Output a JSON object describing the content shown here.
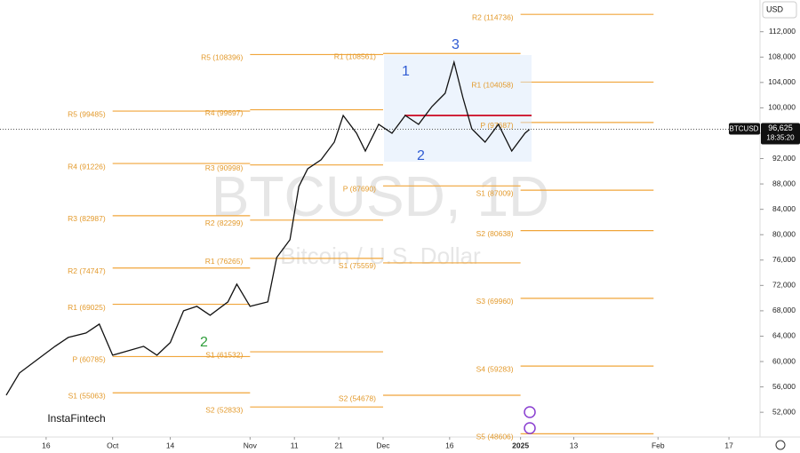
{
  "chart_data": {
    "type": "line",
    "watermark": "BTCUSD, 1D",
    "subtitle": "Bitcoin / U.S. Dollar",
    "brand": "InstaFintech",
    "currency": "USD",
    "symbol": "BTCUSD",
    "last_price": {
      "value": 96625,
      "label": "96,625"
    },
    "countdown": "18:35:20",
    "color": "#111111",
    "level_color": "#f0a53a",
    "xlim": [
      -10.4,
      161
    ],
    "ylim": [
      48100,
      117000
    ],
    "xticks": [
      {
        "value": 0,
        "label": "16"
      },
      {
        "value": 15,
        "label": "Oct"
      },
      {
        "value": 28,
        "label": "14"
      },
      {
        "value": 46,
        "label": "Nov"
      },
      {
        "value": 56,
        "label": "11"
      },
      {
        "value": 66,
        "label": "21"
      },
      {
        "value": 76,
        "label": "Dec"
      },
      {
        "value": 91,
        "label": "16"
      },
      {
        "value": 107,
        "label": "2025"
      },
      {
        "value": 119,
        "label": "13"
      },
      {
        "value": 138,
        "label": "Feb"
      },
      {
        "value": 154,
        "label": "17"
      }
    ],
    "yticks": [
      {
        "value": 52000,
        "label": "52,000"
      },
      {
        "value": 56000,
        "label": "56,000"
      },
      {
        "value": 60000,
        "label": "60,000"
      },
      {
        "value": 64000,
        "label": "64,000"
      },
      {
        "value": 68000,
        "label": "68,000"
      },
      {
        "value": 72000,
        "label": "72,000"
      },
      {
        "value": 76000,
        "label": "76,000"
      },
      {
        "value": 80000,
        "label": "80,000"
      },
      {
        "value": 84000,
        "label": "84,000"
      },
      {
        "value": 88000,
        "label": "88,000"
      },
      {
        "value": 92000,
        "label": "92,000"
      },
      {
        "value": 96000,
        "label": "96,000"
      },
      {
        "value": 100000,
        "label": "100,000"
      },
      {
        "value": 104000,
        "label": "104,000"
      },
      {
        "value": 108000,
        "label": "108,000"
      },
      {
        "value": 112000,
        "label": "112,000"
      }
    ],
    "x": [
      -9,
      -6,
      -2,
      2,
      5,
      9,
      12,
      15,
      18,
      22,
      25,
      28,
      31,
      34,
      37,
      41,
      43,
      46,
      50,
      52,
      55,
      57,
      59,
      62,
      65,
      67,
      70,
      72,
      75,
      78,
      81,
      84,
      87,
      90,
      92,
      94,
      96,
      99,
      102,
      105,
      108,
      109
    ],
    "values": [
      54700,
      58200,
      60300,
      62400,
      63800,
      64500,
      65900,
      61000,
      61600,
      62400,
      61000,
      63000,
      68000,
      68700,
      67300,
      69400,
      72200,
      68700,
      69400,
      76400,
      79200,
      87600,
      90400,
      91800,
      94600,
      98800,
      96000,
      93200,
      97400,
      96000,
      98800,
      97400,
      100200,
      102300,
      107200,
      101600,
      96700,
      94600,
      97400,
      93200,
      96000,
      96600
    ],
    "levels": [
      {
        "label": "R5 (99485)",
        "value": 99485,
        "from": 15,
        "to": 46
      },
      {
        "label": "R4 (91226)",
        "value": 91226,
        "from": 15,
        "to": 46
      },
      {
        "label": "R3 (82987)",
        "value": 82987,
        "from": 15,
        "to": 46
      },
      {
        "label": "R2 (74747)",
        "value": 74747,
        "from": 15,
        "to": 46
      },
      {
        "label": "R1 (69025)",
        "value": 69025,
        "from": 15,
        "to": 46
      },
      {
        "label": "P (60785)",
        "value": 60785,
        "from": 15,
        "to": 46
      },
      {
        "label": "S1 (55063)",
        "value": 55063,
        "from": 15,
        "to": 46
      },
      {
        "label": "R5 (108396)",
        "value": 108396,
        "from": 46,
        "to": 76
      },
      {
        "label": "R4 (99697)",
        "value": 99697,
        "from": 46,
        "to": 76
      },
      {
        "label": "R3 (90998)",
        "value": 90998,
        "from": 46,
        "to": 76
      },
      {
        "label": "R2 (82299)",
        "value": 82299,
        "from": 46,
        "to": 76
      },
      {
        "label": "R1 (76265)",
        "value": 76265,
        "from": 46,
        "to": 76
      },
      {
        "label": "S1 (61532)",
        "value": 61532,
        "from": 46,
        "to": 76
      },
      {
        "label": "S2 (52833)",
        "value": 52833,
        "from": 46,
        "to": 76
      },
      {
        "label": "R1 (108561)",
        "value": 108561,
        "from": 76,
        "to": 107
      },
      {
        "label": "P (87690)",
        "value": 87690,
        "from": 76,
        "to": 107
      },
      {
        "label": "S1 (75559)",
        "value": 75559,
        "from": 76,
        "to": 107
      },
      {
        "label": "S2 (54678)",
        "value": 54678,
        "from": 76,
        "to": 107
      },
      {
        "label": "R2 (114736)",
        "value": 114736,
        "from": 107,
        "to": 137
      },
      {
        "label": "R1 (104058)",
        "value": 104058,
        "from": 107,
        "to": 137
      },
      {
        "label": "P (97687)",
        "value": 97687,
        "from": 107,
        "to": 137
      },
      {
        "label": "S1 (87009)",
        "value": 87009,
        "from": 107,
        "to": 137
      },
      {
        "label": "S2 (80638)",
        "value": 80638,
        "from": 107,
        "to": 137
      },
      {
        "label": "S3 (69960)",
        "value": 69960,
        "from": 107,
        "to": 137
      },
      {
        "label": "S4 (59283)",
        "value": 59283,
        "from": 107,
        "to": 137
      },
      {
        "label": "S5 (48606)",
        "value": 48606,
        "from": 107,
        "to": 137
      }
    ],
    "waves": [
      "1",
      "2",
      "3",
      "2"
    ]
  }
}
